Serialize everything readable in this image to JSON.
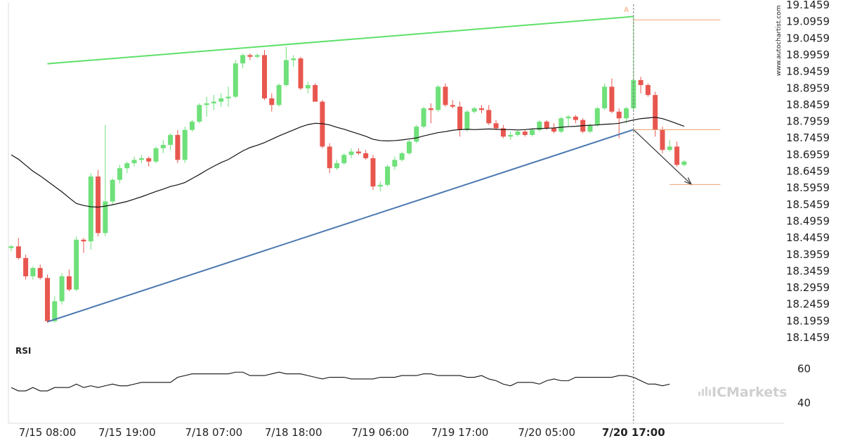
{
  "chart_data": {
    "type": "candlestick",
    "y_ticks": [
      "19.1459",
      "19.0959",
      "19.0459",
      "18.9959",
      "18.9459",
      "18.8959",
      "18.8459",
      "18.7959",
      "18.7459",
      "18.6959",
      "18.6459",
      "18.5959",
      "18.5459",
      "18.4959",
      "18.4459",
      "18.3959",
      "18.3459",
      "18.2959",
      "18.2459",
      "18.1959",
      "18.1459"
    ],
    "ylim": [
      18.1459,
      19.1459
    ],
    "x_ticks": [
      {
        "label": "7/15 08:00",
        "index": 5,
        "bold": false
      },
      {
        "label": "7/15 19:00",
        "index": 16,
        "bold": false
      },
      {
        "label": "7/18 07:00",
        "index": 28,
        "bold": false
      },
      {
        "label": "7/18 18:00",
        "index": 39,
        "bold": false
      },
      {
        "label": "7/19 06:00",
        "index": 51,
        "bold": false
      },
      {
        "label": "7/19 17:00",
        "index": 62,
        "bold": false
      },
      {
        "label": "7/20 05:00",
        "index": 74,
        "bold": false
      },
      {
        "label": "7/20 17:00",
        "index": 86,
        "bold": true
      }
    ],
    "bull_color": "#6fe07a",
    "bear_color": "#e8574f",
    "candles": [
      [
        18.415,
        18.425,
        18.405,
        18.42
      ],
      [
        18.42,
        18.445,
        18.38,
        18.385
      ],
      [
        18.385,
        18.395,
        18.32,
        18.33
      ],
      [
        18.33,
        18.36,
        18.32,
        18.355
      ],
      [
        18.355,
        18.365,
        18.32,
        18.325
      ],
      [
        18.325,
        18.335,
        18.19,
        18.195
      ],
      [
        18.195,
        18.27,
        18.19,
        18.255
      ],
      [
        18.255,
        18.34,
        18.245,
        18.33
      ],
      [
        18.33,
        18.35,
        18.285,
        18.29
      ],
      [
        18.29,
        18.45,
        18.285,
        18.44
      ],
      [
        18.44,
        18.445,
        18.4,
        18.435
      ],
      [
        18.435,
        18.64,
        18.41,
        18.63
      ],
      [
        18.63,
        18.65,
        18.45,
        18.46
      ],
      [
        18.46,
        18.785,
        18.45,
        18.555
      ],
      [
        18.555,
        18.625,
        18.545,
        18.62
      ],
      [
        18.62,
        18.665,
        18.61,
        18.655
      ],
      [
        18.655,
        18.675,
        18.64,
        18.67
      ],
      [
        18.67,
        18.69,
        18.66,
        18.68
      ],
      [
        18.68,
        18.695,
        18.67,
        18.685
      ],
      [
        18.685,
        18.69,
        18.66,
        18.675
      ],
      [
        18.675,
        18.72,
        18.67,
        18.715
      ],
      [
        18.715,
        18.74,
        18.7,
        18.725
      ],
      [
        18.725,
        18.76,
        18.71,
        18.755
      ],
      [
        18.755,
        18.77,
        18.67,
        18.68
      ],
      [
        18.68,
        18.78,
        18.67,
        18.77
      ],
      [
        18.77,
        18.8,
        18.765,
        18.795
      ],
      [
        18.795,
        18.85,
        18.79,
        18.845
      ],
      [
        18.845,
        18.87,
        18.81,
        18.85
      ],
      [
        18.85,
        18.875,
        18.83,
        18.855
      ],
      [
        18.855,
        18.88,
        18.84,
        18.865
      ],
      [
        18.865,
        18.9,
        18.84,
        18.87
      ],
      [
        18.87,
        18.98,
        18.865,
        18.97
      ],
      [
        18.97,
        19.0,
        18.955,
        18.995
      ],
      [
        18.995,
        19.0,
        18.98,
        18.99
      ],
      [
        18.99,
        19.0,
        18.985,
        18.995
      ],
      [
        18.995,
        19.01,
        18.86,
        18.865
      ],
      [
        18.865,
        18.88,
        18.825,
        18.845
      ],
      [
        18.845,
        18.91,
        18.84,
        18.905
      ],
      [
        18.905,
        19.02,
        18.9,
        18.98
      ],
      [
        18.98,
        18.995,
        18.96,
        18.985
      ],
      [
        18.985,
        18.99,
        18.89,
        18.895
      ],
      [
        18.895,
        18.915,
        18.88,
        18.905
      ],
      [
        18.905,
        18.91,
        18.86,
        18.855
      ],
      [
        18.855,
        18.86,
        18.715,
        18.72
      ],
      [
        18.72,
        18.73,
        18.64,
        18.655
      ],
      [
        18.655,
        18.68,
        18.65,
        18.67
      ],
      [
        18.67,
        18.7,
        18.665,
        18.695
      ],
      [
        18.695,
        18.715,
        18.685,
        18.705
      ],
      [
        18.705,
        18.715,
        18.695,
        18.7
      ],
      [
        18.7,
        18.71,
        18.68,
        18.685
      ],
      [
        18.685,
        18.695,
        18.59,
        18.6
      ],
      [
        18.6,
        18.615,
        18.585,
        18.605
      ],
      [
        18.605,
        18.665,
        18.6,
        18.66
      ],
      [
        18.66,
        18.69,
        18.65,
        18.68
      ],
      [
        18.68,
        18.705,
        18.675,
        18.7
      ],
      [
        18.7,
        18.74,
        18.695,
        18.735
      ],
      [
        18.735,
        18.785,
        18.73,
        18.78
      ],
      [
        18.78,
        18.84,
        18.775,
        18.835
      ],
      [
        18.835,
        18.85,
        18.79,
        18.83
      ],
      [
        18.83,
        18.905,
        18.825,
        18.9
      ],
      [
        18.9,
        18.91,
        18.84,
        18.845
      ],
      [
        18.845,
        18.86,
        18.835,
        18.84
      ],
      [
        18.84,
        18.855,
        18.75,
        18.77
      ],
      [
        18.77,
        18.83,
        18.765,
        18.825
      ],
      [
        18.825,
        18.84,
        18.82,
        18.835
      ],
      [
        18.835,
        18.845,
        18.82,
        18.83
      ],
      [
        18.83,
        18.845,
        18.785,
        18.79
      ],
      [
        18.79,
        18.8,
        18.77,
        18.775
      ],
      [
        18.775,
        18.785,
        18.745,
        18.75
      ],
      [
        18.75,
        18.765,
        18.74,
        18.755
      ],
      [
        18.755,
        18.77,
        18.75,
        18.765
      ],
      [
        18.765,
        18.77,
        18.75,
        18.755
      ],
      [
        18.755,
        18.775,
        18.75,
        18.77
      ],
      [
        18.77,
        18.8,
        18.765,
        18.795
      ],
      [
        18.795,
        18.8,
        18.77,
        18.775
      ],
      [
        18.775,
        18.79,
        18.76,
        18.765
      ],
      [
        18.765,
        18.81,
        18.76,
        18.805
      ],
      [
        18.805,
        18.815,
        18.78,
        18.81
      ],
      [
        18.81,
        18.815,
        18.79,
        18.8
      ],
      [
        18.8,
        18.805,
        18.76,
        18.765
      ],
      [
        18.765,
        18.79,
        18.76,
        18.785
      ],
      [
        18.785,
        18.84,
        18.78,
        18.835
      ],
      [
        18.835,
        18.91,
        18.83,
        18.9
      ],
      [
        18.9,
        18.925,
        18.82,
        18.825
      ],
      [
        18.825,
        18.835,
        18.745,
        18.805
      ],
      [
        18.805,
        18.84,
        18.79,
        18.835
      ],
      [
        18.835,
        19.11,
        18.83,
        18.92
      ],
      [
        18.92,
        18.93,
        18.88,
        18.905
      ],
      [
        18.905,
        18.91,
        18.87,
        18.875
      ],
      [
        18.875,
        18.885,
        18.75,
        18.77
      ],
      [
        18.77,
        18.78,
        18.7,
        18.71
      ],
      [
        18.71,
        18.74,
        18.705,
        18.72
      ],
      [
        18.72,
        18.735,
        18.66,
        18.665
      ],
      [
        18.665,
        18.68,
        18.66,
        18.675
      ]
    ],
    "ma_values": [
      18.695,
      18.682,
      18.664,
      18.646,
      18.632,
      18.616,
      18.6,
      18.584,
      18.566,
      18.549,
      18.543,
      18.539,
      18.538,
      18.541,
      18.545,
      18.55,
      18.555,
      18.562,
      18.569,
      18.577,
      18.585,
      18.592,
      18.6,
      18.605,
      18.612,
      18.624,
      18.636,
      18.649,
      18.661,
      18.672,
      18.681,
      18.694,
      18.707,
      18.717,
      18.724,
      18.732,
      18.742,
      18.752,
      18.761,
      18.77,
      18.779,
      18.786,
      18.79,
      18.789,
      18.785,
      18.778,
      18.772,
      18.765,
      18.758,
      18.751,
      18.742,
      18.738,
      18.737,
      18.738,
      18.74,
      18.743,
      18.746,
      18.752,
      18.757,
      18.762,
      18.765,
      18.769,
      18.771,
      18.772,
      18.771,
      18.772,
      18.773,
      18.772,
      18.771,
      18.771,
      18.77,
      18.771,
      18.773,
      18.774,
      18.775,
      18.776,
      18.778,
      18.78,
      18.781,
      18.783,
      18.784,
      18.785,
      18.787,
      18.788,
      18.79,
      18.795,
      18.8,
      18.804,
      18.806,
      18.808,
      18.804,
      18.797,
      18.789,
      18.781
    ],
    "support_line": {
      "from": [
        5,
        18.193
      ],
      "to": [
        86,
        18.771
      ]
    },
    "resistance_line": {
      "from": [
        5,
        18.969
      ],
      "to": [
        86,
        19.111
      ]
    },
    "forecast_arrow": {
      "from": [
        86,
        18.771
      ],
      "to": [
        94,
        18.606
      ]
    },
    "levels": [
      {
        "value": 19.101,
        "from": 86,
        "to": 98
      },
      {
        "value": 18.771,
        "from": 86,
        "to": 98
      },
      {
        "value": 18.606,
        "from": 91,
        "to": 98
      }
    ],
    "current_marker_index": 86.0,
    "pattern_label": "A",
    "pattern_label_at": [
      85,
      19.125
    ],
    "rsi": {
      "title": "RSI",
      "ticks": [
        60,
        40
      ],
      "ylim": [
        28,
        68
      ],
      "values": [
        49,
        47,
        47,
        49,
        47,
        47,
        49,
        49,
        49,
        51,
        49,
        50,
        49,
        50,
        51,
        50,
        50,
        51,
        52,
        52,
        52,
        52,
        52,
        55,
        56,
        57,
        57,
        57,
        57,
        57,
        57,
        58,
        58,
        56,
        56,
        56,
        57,
        58,
        57,
        57,
        57,
        56,
        55,
        54,
        55,
        55,
        55,
        54,
        54,
        54,
        54,
        55,
        55,
        55,
        56,
        56,
        56,
        57,
        57,
        56,
        56,
        56,
        56,
        55,
        55,
        56,
        54,
        53,
        51,
        50,
        52,
        52,
        52,
        51,
        53,
        54,
        53,
        53,
        55,
        55,
        55,
        55,
        55,
        55,
        56,
        56,
        55,
        53,
        51,
        51,
        50,
        51
      ]
    }
  },
  "watermark": "www.autochartist.com",
  "brand": {
    "prefix": "IC",
    "name": "Markets"
  }
}
